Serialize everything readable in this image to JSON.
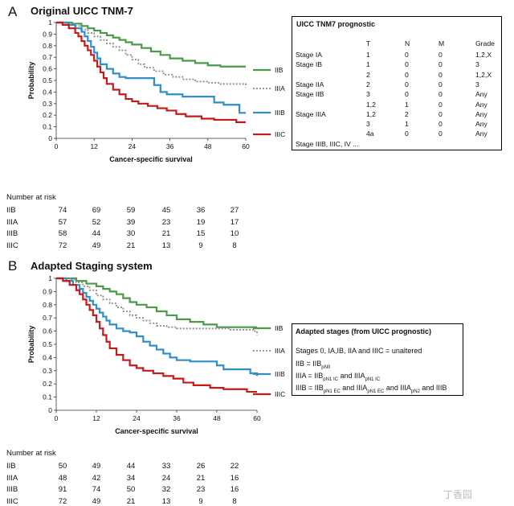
{
  "panels": [
    {
      "letter": "A",
      "title": "Original UICC TNM-7",
      "ylabel": "Probability",
      "xlabel": "Cancer-specific survival",
      "y_ticks": [
        "0",
        "0.1",
        "0.2",
        "0.3",
        "0.4",
        "0.5",
        "0.6",
        "0.7",
        "0.8",
        "0.9",
        "1"
      ],
      "x_ticks": [
        "0",
        "12",
        "24",
        "36",
        "48",
        "60"
      ]
    },
    {
      "letter": "B",
      "title": "Adapted Staging system",
      "ylabel": "Probability",
      "xlabel": "Cancer-specific survival",
      "y_ticks": [
        "0",
        "0.1",
        "0.2",
        "0.3",
        "0.4",
        "0.5",
        "0.6",
        "0.7",
        "0.8",
        "0.9",
        "1"
      ],
      "x_ticks": [
        "0",
        "12",
        "24",
        "36",
        "48",
        "60"
      ]
    }
  ],
  "chart_data": [
    {
      "type": "line",
      "title": "Original UICC TNM-7",
      "xlabel": "Cancer-specific survival",
      "ylabel": "Probability",
      "xlim": [
        0,
        60
      ],
      "ylim": [
        0,
        1
      ],
      "grid": false,
      "legend_position": "right",
      "step": true,
      "series": [
        {
          "name": "IIB",
          "color": "#4a9a4a",
          "dash": "solid",
          "x": [
            0,
            5,
            8,
            10,
            12,
            14,
            16,
            18,
            20,
            22,
            24,
            27,
            30,
            33,
            36,
            40,
            44,
            48,
            52,
            56,
            60
          ],
          "y": [
            1,
            0.99,
            0.97,
            0.95,
            0.93,
            0.91,
            0.89,
            0.87,
            0.85,
            0.83,
            0.81,
            0.78,
            0.75,
            0.72,
            0.69,
            0.67,
            0.65,
            0.63,
            0.62,
            0.62,
            0.62
          ]
        },
        {
          "name": "IIIA",
          "color": "#8c8c8c",
          "dash": "dotted",
          "x": [
            0,
            4,
            6,
            8,
            10,
            12,
            14,
            16,
            18,
            20,
            22,
            24,
            26,
            28,
            31,
            34,
            37,
            40,
            44,
            48,
            52,
            56,
            58,
            60
          ],
          "y": [
            1,
            0.99,
            0.97,
            0.94,
            0.91,
            0.88,
            0.85,
            0.82,
            0.79,
            0.76,
            0.72,
            0.68,
            0.64,
            0.61,
            0.58,
            0.55,
            0.53,
            0.51,
            0.49,
            0.48,
            0.47,
            0.47,
            0.47,
            0.44
          ]
        },
        {
          "name": "IIIB",
          "color": "#2f8fc8",
          "dash": "solid",
          "x": [
            0,
            4,
            6,
            8,
            9,
            10,
            11,
            12,
            13,
            14,
            16,
            18,
            20,
            22,
            26,
            30,
            31,
            33,
            35,
            40,
            44,
            48,
            50,
            53,
            56,
            58,
            60
          ],
          "y": [
            1,
            0.98,
            0.95,
            0.92,
            0.88,
            0.84,
            0.79,
            0.74,
            0.69,
            0.64,
            0.6,
            0.56,
            0.53,
            0.52,
            0.52,
            0.52,
            0.46,
            0.4,
            0.38,
            0.36,
            0.36,
            0.36,
            0.31,
            0.29,
            0.29,
            0.22,
            0.22
          ]
        },
        {
          "name": "IIIC",
          "color": "#c41a1a",
          "dash": "solid",
          "x": [
            0,
            2,
            4,
            6,
            7,
            8,
            9,
            10,
            11,
            12,
            13,
            14,
            15,
            16,
            18,
            20,
            22,
            24,
            26,
            29,
            32,
            35,
            38,
            41,
            46,
            50,
            54,
            57,
            60
          ],
          "y": [
            1,
            0.98,
            0.95,
            0.91,
            0.88,
            0.84,
            0.8,
            0.76,
            0.72,
            0.67,
            0.62,
            0.57,
            0.52,
            0.47,
            0.42,
            0.38,
            0.34,
            0.32,
            0.3,
            0.28,
            0.26,
            0.24,
            0.21,
            0.19,
            0.17,
            0.16,
            0.16,
            0.14,
            0.14
          ]
        }
      ]
    },
    {
      "type": "line",
      "title": "Adapted Staging system",
      "xlabel": "Cancer-specific survival",
      "ylabel": "Probability",
      "xlim": [
        0,
        60
      ],
      "ylim": [
        0,
        1
      ],
      "grid": false,
      "legend_position": "right",
      "step": true,
      "series": [
        {
          "name": "IIB",
          "color": "#4a9a4a",
          "dash": "solid",
          "x": [
            0,
            6,
            9,
            12,
            14,
            16,
            18,
            20,
            22,
            24,
            27,
            30,
            33,
            36,
            40,
            44,
            48,
            52,
            56,
            60
          ],
          "y": [
            1,
            0.98,
            0.96,
            0.94,
            0.92,
            0.9,
            0.88,
            0.85,
            0.82,
            0.8,
            0.78,
            0.75,
            0.72,
            0.69,
            0.67,
            0.65,
            0.63,
            0.63,
            0.63,
            0.63
          ]
        },
        {
          "name": "IIIA",
          "color": "#8c8c8c",
          "dash": "dotted",
          "x": [
            0,
            4,
            6,
            8,
            10,
            12,
            14,
            16,
            18,
            20,
            22,
            24,
            26,
            28,
            30,
            33,
            36,
            40,
            44,
            48,
            52,
            56,
            59,
            60
          ],
          "y": [
            1,
            0.99,
            0.97,
            0.94,
            0.91,
            0.87,
            0.84,
            0.81,
            0.78,
            0.75,
            0.72,
            0.7,
            0.68,
            0.66,
            0.64,
            0.63,
            0.62,
            0.62,
            0.62,
            0.62,
            0.61,
            0.61,
            0.6,
            0.57
          ]
        },
        {
          "name": "IIIB",
          "color": "#2f8fc8",
          "dash": "solid",
          "x": [
            0,
            3,
            5,
            7,
            8,
            9,
            10,
            11,
            12,
            13,
            14,
            15,
            16,
            18,
            20,
            22,
            24,
            26,
            28,
            30,
            32,
            34,
            36,
            40,
            44,
            48,
            50,
            54,
            58,
            60
          ],
          "y": [
            1,
            0.98,
            0.95,
            0.92,
            0.89,
            0.86,
            0.83,
            0.8,
            0.77,
            0.74,
            0.71,
            0.68,
            0.65,
            0.62,
            0.6,
            0.59,
            0.56,
            0.52,
            0.49,
            0.46,
            0.43,
            0.4,
            0.38,
            0.37,
            0.37,
            0.34,
            0.31,
            0.31,
            0.28,
            0.26
          ]
        },
        {
          "name": "IIIC",
          "color": "#c41a1a",
          "dash": "solid",
          "x": [
            0,
            2,
            4,
            6,
            7,
            8,
            9,
            10,
            11,
            12,
            13,
            14,
            15,
            16,
            18,
            20,
            22,
            24,
            26,
            29,
            32,
            35,
            38,
            41,
            46,
            50,
            54,
            57,
            60
          ],
          "y": [
            1,
            0.98,
            0.95,
            0.91,
            0.88,
            0.84,
            0.8,
            0.76,
            0.72,
            0.67,
            0.62,
            0.57,
            0.52,
            0.47,
            0.42,
            0.38,
            0.34,
            0.32,
            0.3,
            0.28,
            0.26,
            0.24,
            0.21,
            0.19,
            0.17,
            0.16,
            0.16,
            0.14,
            0.14
          ]
        }
      ]
    }
  ],
  "risk_tables": [
    {
      "title": "Number at risk",
      "rows": [
        {
          "label": "IIB",
          "values": [
            "74",
            "69",
            "59",
            "45",
            "36",
            "27"
          ]
        },
        {
          "label": "IIIA",
          "values": [
            "57",
            "52",
            "39",
            "23",
            "19",
            "17"
          ]
        },
        {
          "label": "IIIB",
          "values": [
            "58",
            "44",
            "30",
            "21",
            "15",
            "10"
          ]
        },
        {
          "label": "IIIC",
          "values": [
            "72",
            "49",
            "21",
            "13",
            "9",
            "8"
          ]
        }
      ]
    },
    {
      "title": "Number at risk",
      "rows": [
        {
          "label": "IIB",
          "values": [
            "50",
            "49",
            "44",
            "33",
            "26",
            "22"
          ]
        },
        {
          "label": "IIIA",
          "values": [
            "48",
            "42",
            "34",
            "24",
            "21",
            "16"
          ]
        },
        {
          "label": "IIIB",
          "values": [
            "91",
            "74",
            "50",
            "32",
            "23",
            "16"
          ]
        },
        {
          "label": "IIIC",
          "values": [
            "72",
            "49",
            "21",
            "13",
            "9",
            "8"
          ]
        }
      ]
    }
  ],
  "tnm_box": {
    "title": "UICC TNM7 prognostic",
    "headers": [
      "T",
      "N",
      "M",
      "Grade"
    ],
    "rows": [
      {
        "stage": "Stage IA",
        "t": "1",
        "n": "0",
        "m": "0",
        "grade": "1,2,X"
      },
      {
        "stage": "Stage IB",
        "t": "1",
        "n": "0",
        "m": "0",
        "grade": "3"
      },
      {
        "stage": "",
        "t": "2",
        "n": "0",
        "m": "0",
        "grade": "1,2,X"
      },
      {
        "stage": "Stage IIA",
        "t": "2",
        "n": "0",
        "m": "0",
        "grade": "3"
      },
      {
        "stage": "Stage IIB",
        "t": "3",
        "n": "0",
        "m": "0",
        "grade": "Any"
      },
      {
        "stage": "",
        "t": "1,2",
        "n": "1",
        "m": "0",
        "grade": "Any"
      },
      {
        "stage": "Stage IIIA",
        "t": "1,2",
        "n": "2",
        "m": "0",
        "grade": "Any"
      },
      {
        "stage": "",
        "t": "3",
        "n": "1",
        "m": "0",
        "grade": "Any"
      },
      {
        "stage": "",
        "t": "4a",
        "n": "0",
        "m": "0",
        "grade": "Any"
      },
      {
        "stage": "Stage IIIB, IIIC, IV ...",
        "t": "",
        "n": "",
        "m": "",
        "grade": ""
      }
    ]
  },
  "adapted_box": {
    "title": "Adapted stages (from UICC prognostic)",
    "line1": "Stages 0, IA,IB, IIA and IIIC = unaltered",
    "line2": {
      "a": "IIB = IIB",
      "a_sub": "pN0"
    },
    "line3": {
      "a": "IIIA = IIB",
      "a_sub": "pN1 IC",
      "b": " and IIIA",
      "b_sub": "pN1 IC"
    },
    "line4": {
      "a": "IIIB = IIB",
      "a_sub": "pN1 EC",
      "b": " and IIIA",
      "b_sub": "pN1 EC",
      "c": " and IIIA",
      "c_sub": "pN2",
      "d": " and IIIB"
    }
  },
  "watermark": "丁香园"
}
